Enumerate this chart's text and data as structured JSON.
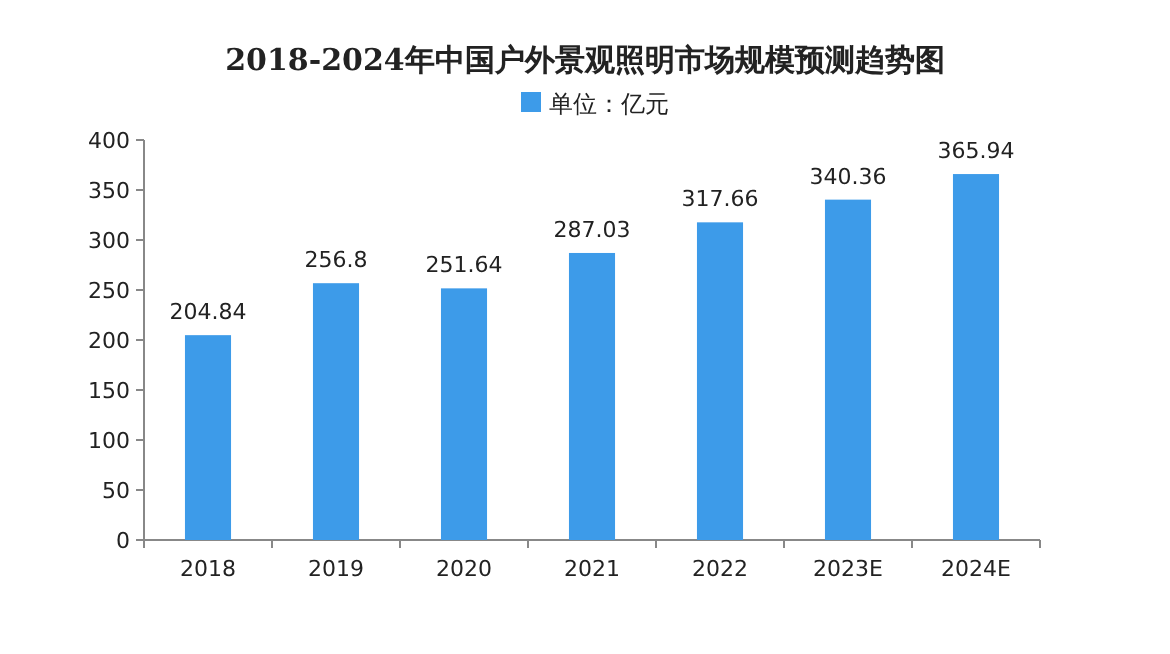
{
  "chart_data": {
    "type": "bar",
    "title": "2018-2024年中国户外景观照明市场规模预测趋势图",
    "categories": [
      "2018",
      "2019",
      "2020",
      "2021",
      "2022",
      "2023E",
      "2024E"
    ],
    "series": [
      {
        "name": "单位：亿元",
        "color": "#3d9be9",
        "values": [
          204.84,
          256.8,
          251.64,
          287.03,
          317.66,
          340.36,
          365.94
        ]
      }
    ],
    "ylim": [
      0,
      400
    ],
    "yticks": [
      0,
      50,
      100,
      150,
      200,
      250,
      300,
      350,
      400
    ],
    "data_labels": true,
    "legend": "top",
    "grid": false
  }
}
